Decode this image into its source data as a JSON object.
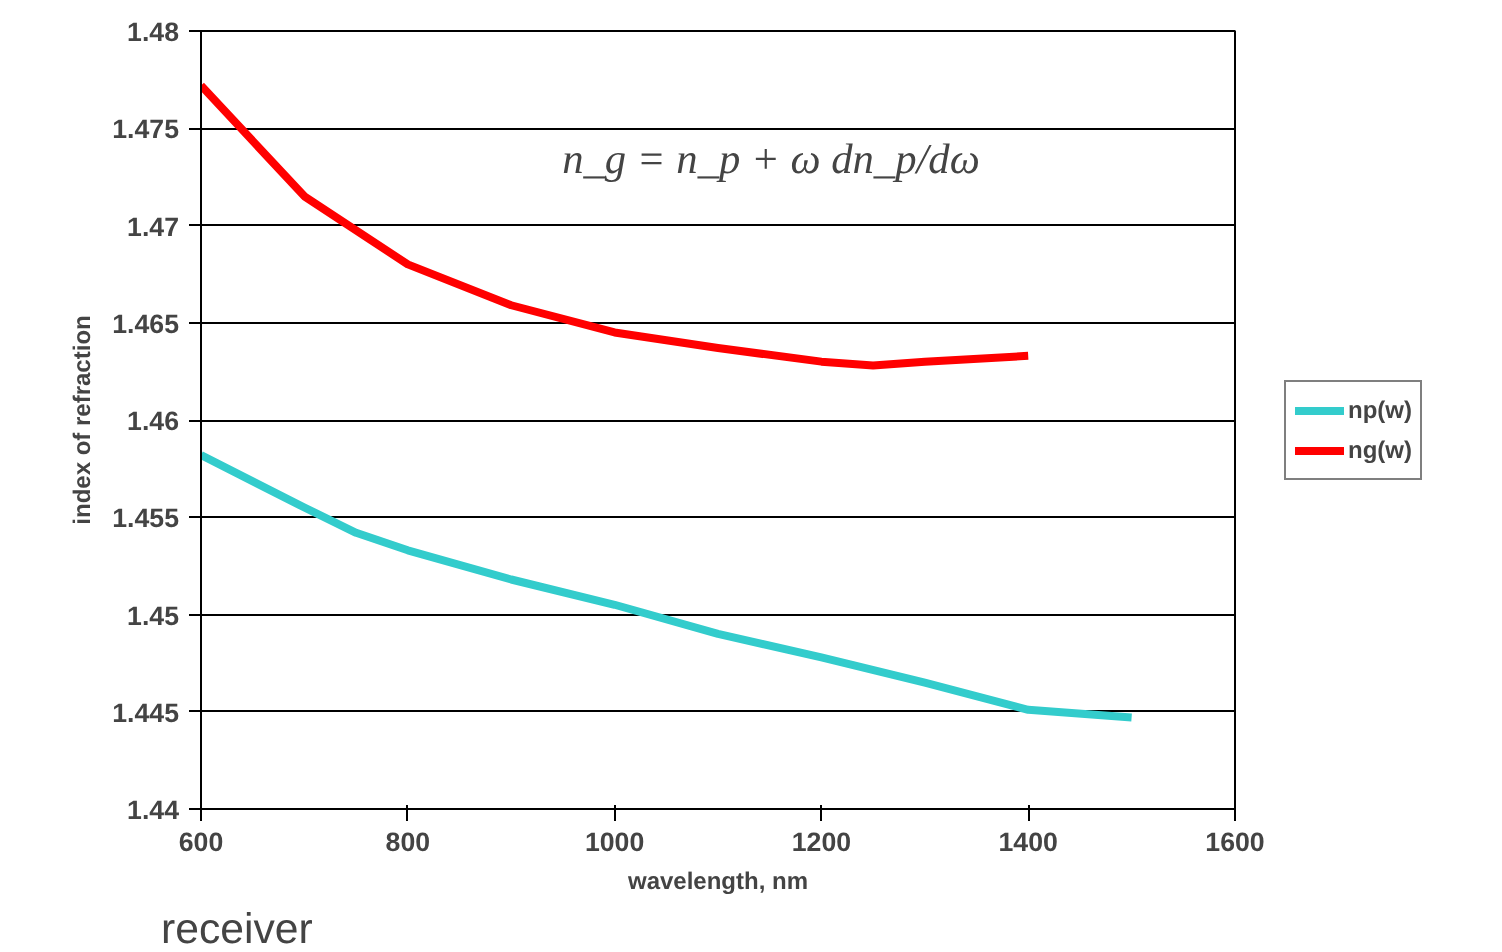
{
  "chart_data": {
    "type": "line",
    "xlabel": "wavelength, nm",
    "ylabel": "index of refraction",
    "x": [
      600,
      700,
      750,
      800,
      900,
      1000,
      1100,
      1200,
      1250,
      1300,
      1400,
      1500
    ],
    "series": [
      {
        "name": "np(w)",
        "color": "#33cccc",
        "values": [
          1.4582,
          1.4555,
          1.4542,
          1.4533,
          1.4518,
          1.4505,
          1.449,
          1.4478,
          null,
          1.4465,
          1.4451,
          1.4447
        ]
      },
      {
        "name": "ng(w)",
        "color": "#ff0000",
        "values": [
          1.4772,
          1.4715,
          null,
          1.468,
          1.4659,
          1.4645,
          1.4637,
          1.463,
          1.4628,
          1.463,
          1.4633,
          null
        ]
      }
    ],
    "xlim": [
      600,
      1600
    ],
    "xticks": [
      600,
      800,
      1000,
      1200,
      1400,
      1600
    ],
    "ylim": [
      1.44,
      1.48
    ],
    "yticks": [
      1.44,
      1.445,
      1.45,
      1.455,
      1.46,
      1.465,
      1.47,
      1.475,
      1.48
    ],
    "grid": "y",
    "legend": "right",
    "marker": "none",
    "line_style": "solid",
    "annotations": [
      "n_g = n_p + ω dn_p/dω",
      "receiver"
    ]
  }
}
